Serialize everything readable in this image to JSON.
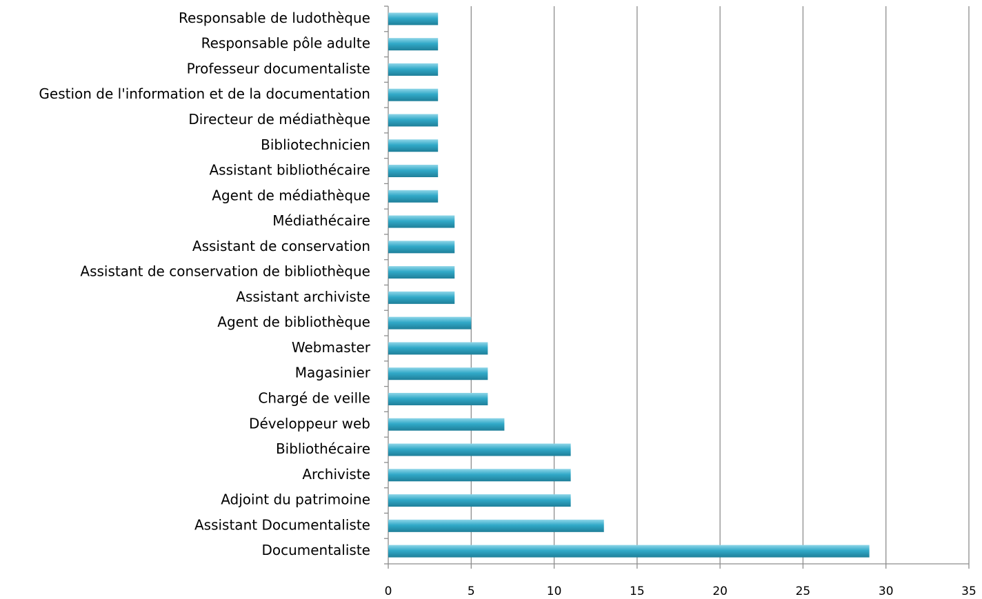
{
  "chart_data": {
    "type": "bar",
    "orientation": "horizontal",
    "categories": [
      "Responsable de ludothèque",
      "Responsable pôle adulte",
      "Professeur documentaliste",
      "Gestion de l'information et de la documentation",
      "Directeur de médiathèque",
      "Bibliotechnicien",
      "Assistant bibliothécaire",
      "Agent de médiathèque",
      "Médiathécaire",
      "Assistant de conservation",
      "Assistant de conservation de bibliothèque",
      "Assistant archiviste",
      "Agent de bibliothèque",
      "Webmaster",
      "Magasinier",
      "Chargé de veille ",
      "Développeur web",
      "Bibliothécaire",
      "Archiviste",
      "Adjoint du patrimoine",
      "Assistant Documentaliste",
      "Documentaliste"
    ],
    "values": [
      3,
      3,
      3,
      3,
      3,
      3,
      3,
      3,
      4,
      4,
      4,
      4,
      5,
      6,
      6,
      6,
      7,
      11,
      11,
      11,
      13,
      29
    ],
    "color": "#31a9c8",
    "xlim": [
      0,
      35
    ],
    "xticks": [
      0,
      5,
      10,
      15,
      20,
      25,
      30,
      35
    ],
    "grid": true
  }
}
